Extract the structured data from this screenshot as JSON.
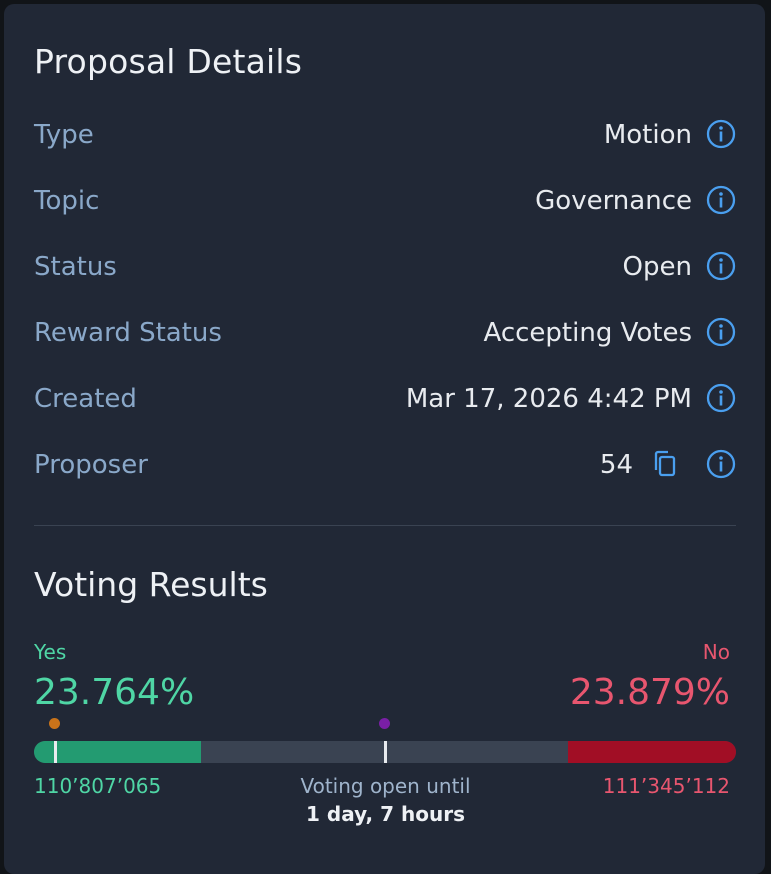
{
  "details": {
    "title": "Proposal Details",
    "rows": [
      {
        "label": "Type",
        "value": "Motion"
      },
      {
        "label": "Topic",
        "value": "Governance"
      },
      {
        "label": "Status",
        "value": "Open"
      },
      {
        "label": "Reward Status",
        "value": "Accepting Votes"
      },
      {
        "label": "Created",
        "value": "Mar 17, 2026 4:42 PM"
      },
      {
        "label": "Proposer",
        "value": "54"
      }
    ],
    "info_icon": "info-circle-icon",
    "copy_icon": "copy-icon"
  },
  "voting": {
    "title": "Voting Results",
    "yes_label": "Yes",
    "no_label": "No",
    "yes_percent": "23.764%",
    "no_percent": "23.879%",
    "yes_fraction": 0.23764,
    "no_fraction": 0.23879,
    "yes_count": "110’807’065",
    "no_count": "111’345’112",
    "open_until_label": "Voting open until",
    "time_remaining": "1 day, 7 hours"
  },
  "colors": {
    "card_bg": "#212836",
    "yes": "#4fd6a5",
    "yes_bar": "#239b71",
    "no": "#e8566f",
    "no_bar": "#a10e25",
    "icon_blue": "#4a9fef",
    "orange_marker": "#c9731a",
    "purple_marker": "#7a1fa6"
  }
}
